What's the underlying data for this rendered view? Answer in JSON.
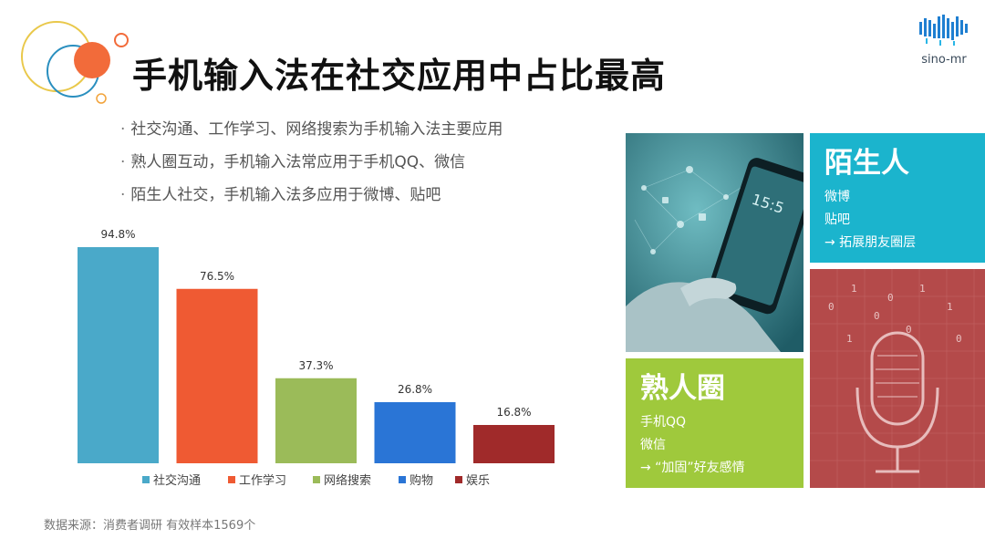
{
  "title": "手机输入法在社交应用中占比最高",
  "logo": {
    "text": "sino-mr"
  },
  "bullets": [
    "社交沟通、工作学习、网络搜索为手机输入法主要应用",
    "熟人圈互动，手机输入法常应用于手机QQ、微信",
    "陌生人社交，手机输入法多应用于微博、贴吧"
  ],
  "chart_data": {
    "type": "bar",
    "categories": [
      "社交沟通",
      "工作学习",
      "网络搜索",
      "购物",
      "娱乐"
    ],
    "values": [
      94.8,
      76.5,
      37.3,
      26.8,
      16.8
    ],
    "value_labels": [
      "94.8%",
      "76.5%",
      "37.3%",
      "26.8%",
      "16.8%"
    ],
    "colors": [
      "#4aa9c9",
      "#ef5a33",
      "#9bbb59",
      "#2a75d6",
      "#a02a2a"
    ],
    "ylim": [
      0,
      100
    ],
    "legend_position": "bottom",
    "grid": false
  },
  "source": "数据来源：消费者调研 有效样本1569个",
  "tiles": {
    "stranger": {
      "title": "陌生人",
      "lines": [
        "微博",
        "贴吧",
        "→ 拓展朋友圈层"
      ]
    },
    "acquaintance": {
      "title": "熟人圈",
      "lines": [
        "手机QQ",
        "微信",
        "→ “加固”好友感情"
      ]
    }
  },
  "colors": {
    "cyan_tile": "#1bb4cd",
    "green_tile": "#9fc93c",
    "photo_bg": "#3d8b95",
    "mic_bg": "#b44a4a",
    "deco_orange": "#f26b3a",
    "deco_blue": "#2a8fbf",
    "deco_yellow": "#e9c84a"
  },
  "icons": [
    "decorative-circles-icon",
    "sino-mr-logo-icon",
    "smartphone-hand-icon",
    "microphone-icon"
  ]
}
